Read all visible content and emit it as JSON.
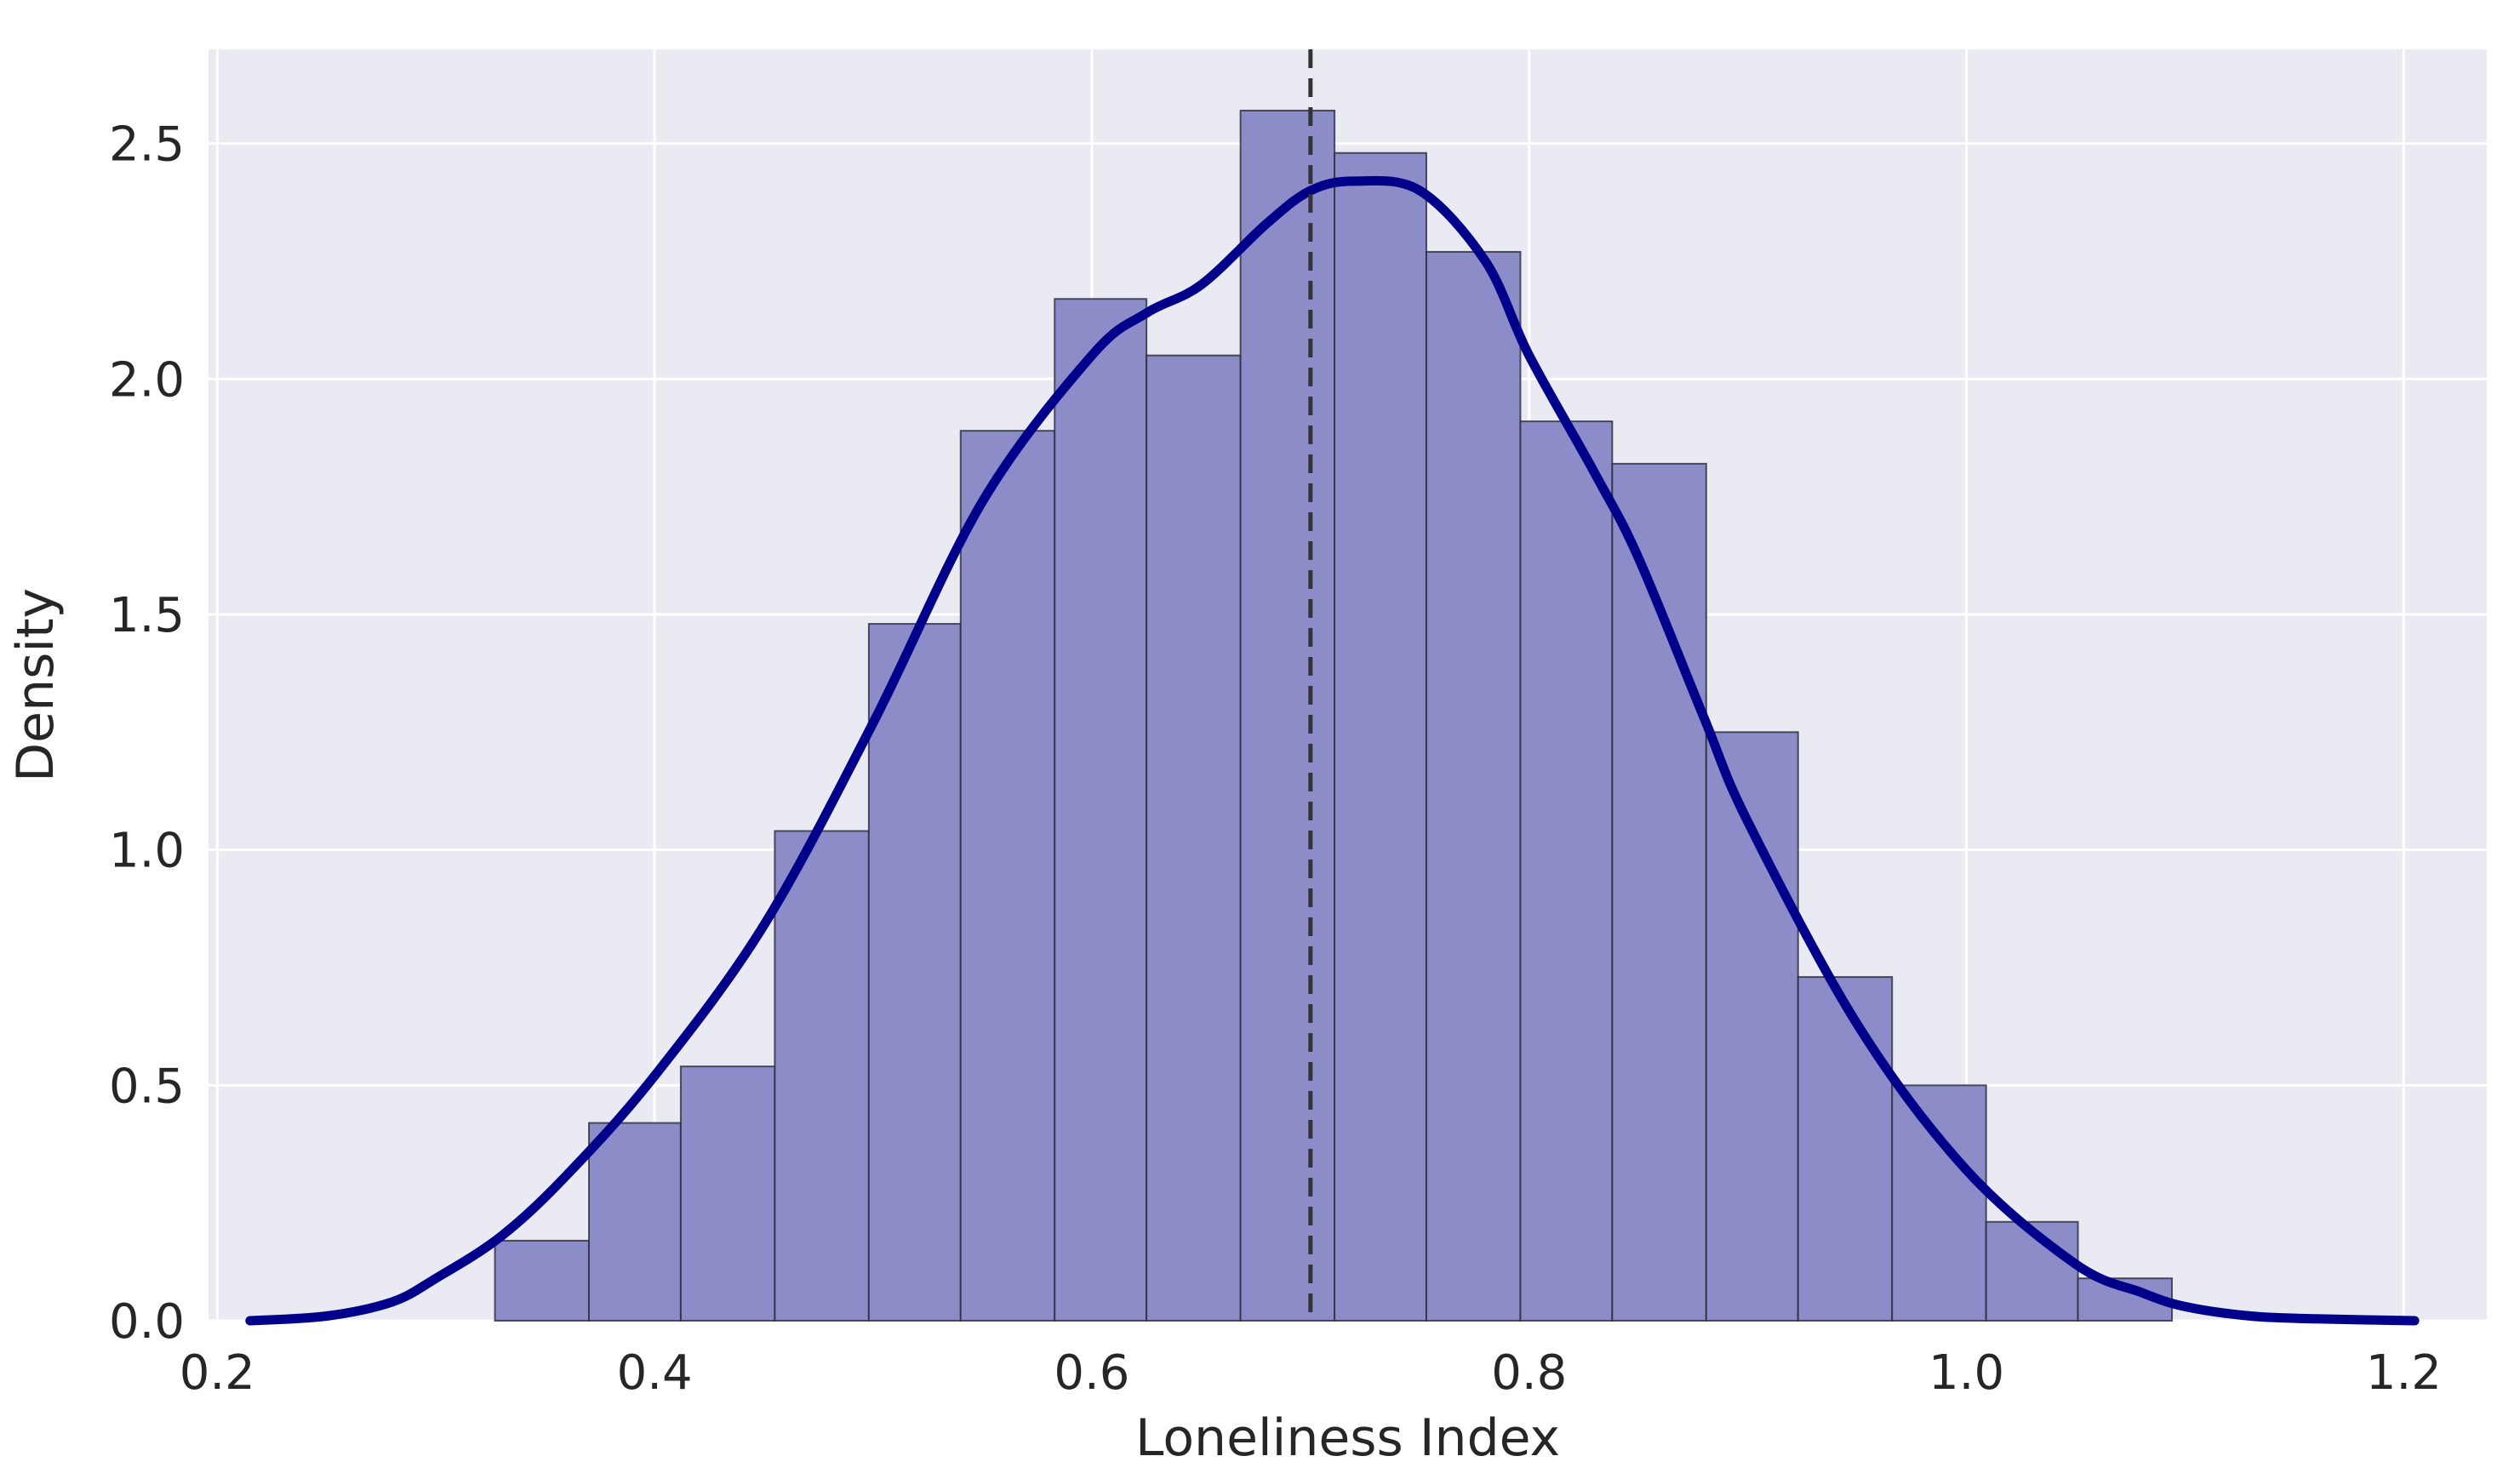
{
  "chart_data": {
    "type": "bar",
    "subtype": "histogram with kde",
    "title": "",
    "xlabel": "Loneliness Index",
    "ylabel": "Density",
    "xlim": [
      0.196,
      1.238
    ],
    "ylim": [
      0,
      2.7
    ],
    "xticks": [
      "0.2",
      "0.4",
      "0.6",
      "0.8",
      "1.0",
      "1.2"
    ],
    "yticks": [
      "0.0",
      "0.5",
      "1.0",
      "1.5",
      "2.0",
      "2.5"
    ],
    "grid": true,
    "legend": "none",
    "bins": [
      {
        "x0": 0.327,
        "x1": 0.37,
        "density": 0.17
      },
      {
        "x0": 0.37,
        "x1": 0.412,
        "density": 0.42
      },
      {
        "x0": 0.412,
        "x1": 0.455,
        "density": 0.54
      },
      {
        "x0": 0.455,
        "x1": 0.498,
        "density": 1.04
      },
      {
        "x0": 0.498,
        "x1": 0.54,
        "density": 1.48
      },
      {
        "x0": 0.54,
        "x1": 0.583,
        "density": 1.89
      },
      {
        "x0": 0.583,
        "x1": 0.625,
        "density": 2.17
      },
      {
        "x0": 0.625,
        "x1": 0.668,
        "density": 2.05
      },
      {
        "x0": 0.668,
        "x1": 0.711,
        "density": 2.57
      },
      {
        "x0": 0.711,
        "x1": 0.753,
        "density": 2.48
      },
      {
        "x0": 0.753,
        "x1": 0.796,
        "density": 2.27
      },
      {
        "x0": 0.796,
        "x1": 0.838,
        "density": 1.91
      },
      {
        "x0": 0.838,
        "x1": 0.881,
        "density": 1.82
      },
      {
        "x0": 0.881,
        "x1": 0.923,
        "density": 1.25
      },
      {
        "x0": 0.923,
        "x1": 0.966,
        "density": 0.73
      },
      {
        "x0": 0.966,
        "x1": 1.009,
        "density": 0.5
      },
      {
        "x0": 1.009,
        "x1": 1.051,
        "density": 0.21
      },
      {
        "x0": 1.051,
        "x1": 1.094,
        "density": 0.09
      }
    ],
    "kde": {
      "x": [
        0.215,
        0.25,
        0.28,
        0.3,
        0.33,
        0.36,
        0.4,
        0.45,
        0.5,
        0.55,
        0.6,
        0.625,
        0.65,
        0.68,
        0.7,
        0.72,
        0.75,
        0.78,
        0.8,
        0.83,
        0.85,
        0.88,
        0.9,
        0.95,
        1.0,
        1.05,
        1.08,
        1.1,
        1.13,
        1.16,
        1.205
      ],
      "y": [
        0.0,
        0.01,
        0.04,
        0.09,
        0.18,
        0.31,
        0.52,
        0.84,
        1.27,
        1.74,
        2.05,
        2.14,
        2.2,
        2.33,
        2.4,
        2.42,
        2.4,
        2.25,
        2.05,
        1.8,
        1.62,
        1.28,
        1.06,
        0.63,
        0.32,
        0.12,
        0.06,
        0.03,
        0.01,
        0.004,
        0.0
      ]
    },
    "reference_line": {
      "x": 0.7,
      "style": "dashed"
    },
    "colors": {
      "background": "#eaeaf2",
      "grid": "#ffffff",
      "bar_fill": "#8c8cc8",
      "bar_edge": "#2b2b3d",
      "kde_line": "#00008b",
      "reference_line": "#333333",
      "text": "#262626"
    }
  }
}
